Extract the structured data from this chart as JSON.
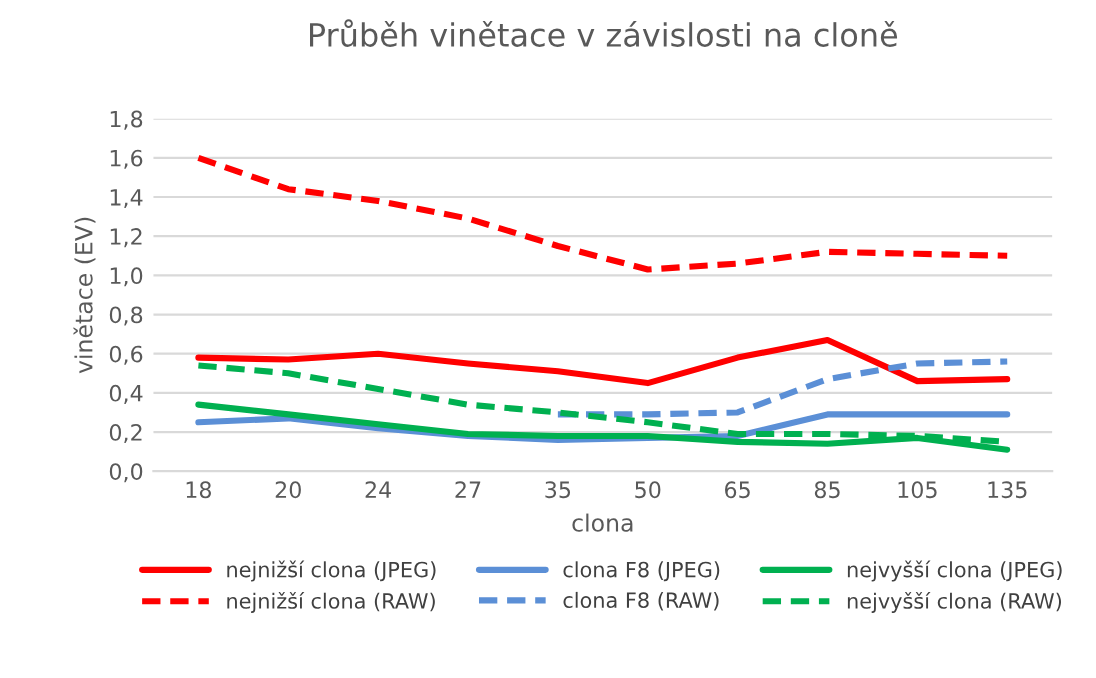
{
  "chart_data": {
    "type": "line",
    "title": "Průběh vinětace v závislosti na cloně",
    "xlabel": "clona",
    "ylabel": "vinětace (EV)",
    "categories": [
      "18",
      "20",
      "24",
      "27",
      "35",
      "50",
      "65",
      "85",
      "105",
      "135"
    ],
    "series": [
      {
        "name": "nejnižší clona (JPEG)",
        "color": "#ff0000",
        "line_style": "solid",
        "values": [
          0.58,
          0.57,
          0.6,
          0.55,
          0.51,
          0.45,
          0.58,
          0.67,
          0.46,
          0.47
        ]
      },
      {
        "name": "clona F8 (JPEG)",
        "color": "#5b8fd6",
        "line_style": "solid",
        "values": [
          0.25,
          0.27,
          0.22,
          0.18,
          0.16,
          0.17,
          0.18,
          0.29,
          0.29,
          0.29
        ]
      },
      {
        "name": "nejvyšší clona (JPEG)",
        "color": "#00b050",
        "line_style": "solid",
        "values": [
          0.34,
          0.29,
          0.24,
          0.19,
          0.18,
          0.18,
          0.15,
          0.14,
          0.17,
          0.11
        ]
      },
      {
        "name": "nejnižší clona (RAW)",
        "color": "#ff0000",
        "line_style": "dashed",
        "values": [
          1.6,
          1.44,
          1.38,
          1.29,
          1.15,
          1.03,
          1.06,
          1.12,
          1.11,
          1.1
        ]
      },
      {
        "name": "clona F8 (RAW)",
        "color": "#5b8fd6",
        "line_style": "dashed",
        "values": [
          null,
          null,
          null,
          null,
          0.29,
          0.29,
          0.3,
          0.47,
          0.55,
          0.56
        ]
      },
      {
        "name": "nejvyšší clona (RAW)",
        "color": "#00b050",
        "line_style": "dashed",
        "values": [
          0.54,
          0.5,
          0.42,
          0.34,
          0.3,
          0.25,
          0.19,
          0.19,
          0.18,
          0.15
        ]
      }
    ],
    "ylim": [
      0,
      1.8
    ],
    "yticks": [
      {
        "value": 0,
        "label": "0,0"
      },
      {
        "value": 0.2,
        "label": "0,2"
      },
      {
        "value": 0.4,
        "label": "0,4"
      },
      {
        "value": 0.6,
        "label": "0,6"
      },
      {
        "value": 0.8,
        "label": "0,8"
      },
      {
        "value": 1.0,
        "label": "1,0"
      },
      {
        "value": 1.2,
        "label": "1,2"
      },
      {
        "value": 1.4,
        "label": "1,4"
      },
      {
        "value": 1.6,
        "label": "1,6"
      },
      {
        "value": 1.8,
        "label": "1,8"
      }
    ],
    "grid": "y",
    "legend": "bottom",
    "marker": "none"
  }
}
